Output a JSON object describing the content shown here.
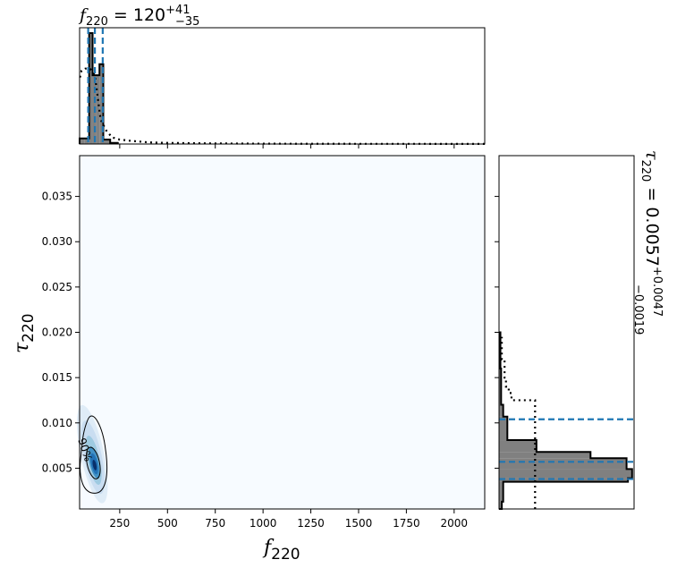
{
  "chart_data": [
    {
      "type": "histogram",
      "panel": "top marginal",
      "title_main": "f",
      "title_sub": "220",
      "title_value": " = 120",
      "title_err_up": "+41",
      "title_err_down": "−35",
      "xlim": [
        40,
        2160
      ],
      "xticks": [
        250,
        500,
        750,
        1000,
        1250,
        1500,
        1750,
        2000
      ],
      "posterior_bins": [
        {
          "x0": 40,
          "x1": 65,
          "density": 0.05
        },
        {
          "x0": 65,
          "x1": 90,
          "density": 0.05
        },
        {
          "x0": 90,
          "x1": 108,
          "density": 1.0
        },
        {
          "x0": 108,
          "x1": 126,
          "density": 0.62
        },
        {
          "x0": 126,
          "x1": 144,
          "density": 0.62
        },
        {
          "x0": 144,
          "x1": 164,
          "density": 0.72
        },
        {
          "x0": 164,
          "x1": 200,
          "density": 0.04
        },
        {
          "x0": 200,
          "x1": 240,
          "density": 0.01
        }
      ],
      "prior_curve": [
        [
          42,
          0.6
        ],
        [
          50,
          0.66
        ],
        [
          70,
          0.68
        ],
        [
          95,
          0.68
        ],
        [
          120,
          0.62
        ],
        [
          150,
          0.22
        ],
        [
          180,
          0.12
        ],
        [
          210,
          0.06
        ],
        [
          250,
          0.04
        ],
        [
          300,
          0.03
        ],
        [
          400,
          0.015
        ],
        [
          500,
          0.01
        ],
        [
          700,
          0.006
        ],
        [
          900,
          0.004
        ],
        [
          1200,
          0.002
        ],
        [
          2160,
          0.001
        ]
      ],
      "quantile_lines": [
        85,
        120,
        161
      ]
    },
    {
      "type": "heatmap",
      "panel": "joint",
      "xlabel_main": "f",
      "xlabel_sub": "220",
      "ylabel_main": "τ",
      "ylabel_sub": "220",
      "xlim": [
        40,
        2160
      ],
      "ylim": [
        0.0005,
        0.0395
      ],
      "xticks": [
        250,
        500,
        750,
        1000,
        1250,
        1500,
        1750,
        2000
      ],
      "yticks": [
        0.005,
        0.01,
        0.015,
        0.02,
        0.025,
        0.03,
        0.035
      ],
      "ytick_labels": [
        "0.005",
        "0.010",
        "0.015",
        "0.020",
        "0.025",
        "0.030",
        "0.035"
      ],
      "contour_label": "90%",
      "peak": {
        "x": 120,
        "y": 0.0052
      }
    },
    {
      "type": "histogram",
      "panel": "right marginal",
      "orientation": "horizontal",
      "title_main": "τ",
      "title_sub": "220",
      "title_value": " = 0.0057",
      "title_err_up": "+0.0047",
      "title_err_down": "−0.0019",
      "ylim": [
        0.0005,
        0.0395
      ],
      "posterior_bins": [
        {
          "y0": 0.0005,
          "y1": 0.0013,
          "density": 0.02
        },
        {
          "y0": 0.0013,
          "y1": 0.0035,
          "density": 0.03
        },
        {
          "y0": 0.0035,
          "y1": 0.0039,
          "density": 0.93
        },
        {
          "y0": 0.0039,
          "y1": 0.0049,
          "density": 0.96
        },
        {
          "y0": 0.0049,
          "y1": 0.0061,
          "density": 0.92
        },
        {
          "y0": 0.0061,
          "y1": 0.0068,
          "density": 0.66
        },
        {
          "y0": 0.0068,
          "y1": 0.0081,
          "density": 0.27
        },
        {
          "y0": 0.0081,
          "y1": 0.0107,
          "density": 0.06
        },
        {
          "y0": 0.0107,
          "y1": 0.012,
          "density": 0.03
        },
        {
          "y0": 0.012,
          "y1": 0.016,
          "density": 0.015
        },
        {
          "y0": 0.016,
          "y1": 0.02,
          "density": 0.01
        }
      ],
      "prior_bins": [
        {
          "y0": 0.0005,
          "y1": 0.0013,
          "density": 0.26
        },
        {
          "y0": 0.0013,
          "y1": 0.0094,
          "density": 0.26
        },
        {
          "y0": 0.0094,
          "y1": 0.0125,
          "density": 0.26
        },
        {
          "y0": 0.0125,
          "y1": 0.0133,
          "density": 0.09
        },
        {
          "y0": 0.0133,
          "y1": 0.014,
          "density": 0.07
        },
        {
          "y0": 0.014,
          "y1": 0.015,
          "density": 0.05
        },
        {
          "y0": 0.015,
          "y1": 0.017,
          "density": 0.04
        },
        {
          "y0": 0.017,
          "y1": 0.0195,
          "density": 0.02
        }
      ],
      "quantile_lines": [
        0.0038,
        0.0057,
        0.0104
      ]
    }
  ],
  "colors": {
    "hist_fill": "#808080",
    "quantile_line": "#1f77b4",
    "density_low": "#f7fbff",
    "density_high": "#08306b",
    "outline": "#000000"
  }
}
